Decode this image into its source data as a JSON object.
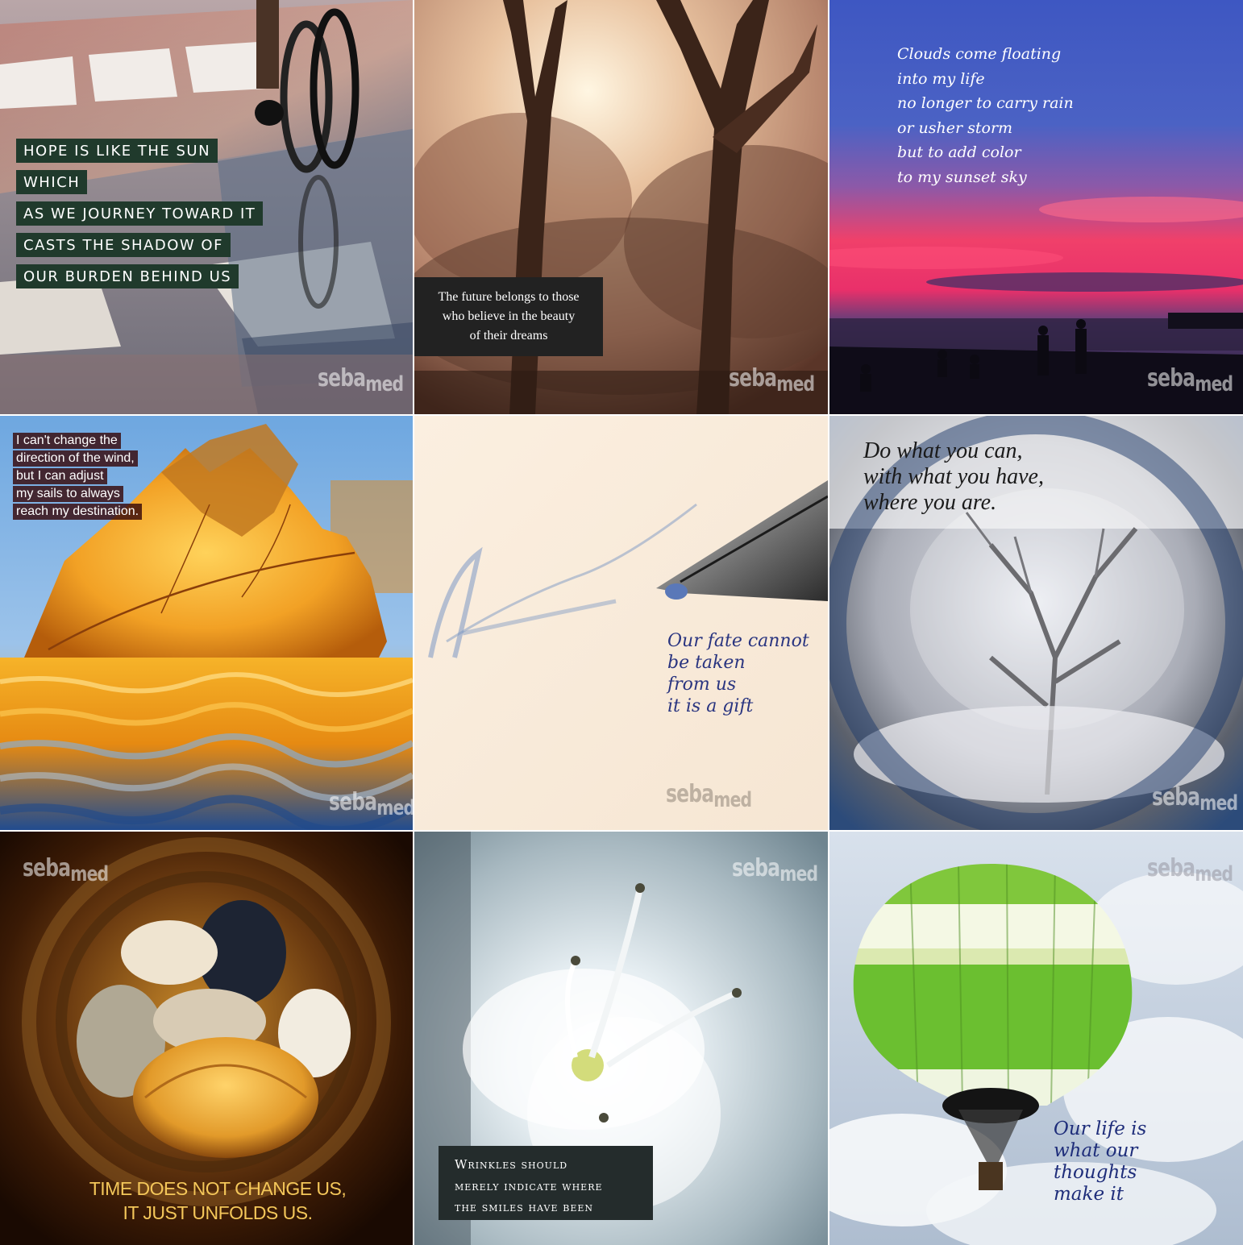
{
  "brand": {
    "logo_text_a": "seba",
    "logo_text_b": "med"
  },
  "tiles": [
    {
      "lines": [
        "HOPE IS LIKE THE SUN",
        "WHICH",
        "AS WE JOURNEY TOWARD IT",
        "CASTS THE SHADOW OF",
        "OUR BURDEN BEHIND US"
      ]
    },
    {
      "lines": [
        "The future belongs to those",
        "who believe in the beauty",
        "of their dreams"
      ]
    },
    {
      "lines": [
        "Clouds come floating",
        "into my life",
        "no longer to carry rain",
        "or usher storm",
        "but to add color",
        "to my sunset sky"
      ]
    },
    {
      "lines": [
        "I can't change the",
        "direction of the wind,",
        "but I can adjust",
        "my sails to always",
        "reach my destination."
      ]
    },
    {
      "lines": [
        "Our fate cannot",
        "be taken",
        "from us",
        "it is a gift"
      ]
    },
    {
      "lines": [
        "Do what you can,",
        "with what you have,",
        "where you are."
      ]
    },
    {
      "lines": [
        "TIME DOES NOT CHANGE US,",
        "IT JUST UNFOLDS US."
      ]
    },
    {
      "lines": [
        "Wrinkles should",
        "merely indicate where",
        "the smiles have been"
      ]
    },
    {
      "lines": [
        "Our life is",
        "what our",
        "thoughts",
        "make it"
      ]
    }
  ]
}
